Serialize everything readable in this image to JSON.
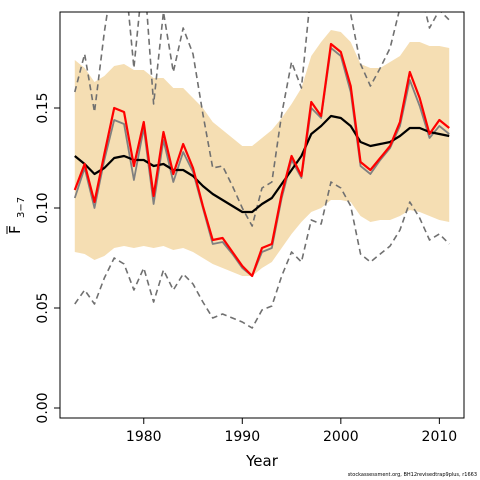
{
  "chart_data": {
    "type": "line",
    "xlabel": "Year",
    "ylabel_main": "F",
    "ylabel_sub": "3−7",
    "xlim": [
      1971.5,
      2012.5
    ],
    "ylim": [
      -0.005,
      0.198
    ],
    "x_ticks": [
      1980,
      1990,
      2000,
      2010
    ],
    "y_ticks": [
      0.0,
      0.05,
      0.1,
      0.15
    ],
    "y_tick_labels": [
      "0.00",
      "0.05",
      "0.10",
      "0.15"
    ],
    "grid": false,
    "years": [
      1973,
      1974,
      1975,
      1976,
      1977,
      1978,
      1979,
      1980,
      1981,
      1982,
      1983,
      1984,
      1985,
      1986,
      1987,
      1988,
      1989,
      1990,
      1991,
      1992,
      1993,
      1994,
      1995,
      1996,
      1997,
      1998,
      1999,
      2000,
      2001,
      2002,
      2003,
      2004,
      2005,
      2006,
      2007,
      2008,
      2009,
      2010,
      2011
    ],
    "series": [
      {
        "role": "ci_upper",
        "values": [
          0.174,
          0.17,
          0.163,
          0.166,
          0.171,
          0.172,
          0.169,
          0.169,
          0.165,
          0.165,
          0.16,
          0.16,
          0.155,
          0.15,
          0.143,
          0.139,
          0.135,
          0.131,
          0.131,
          0.135,
          0.139,
          0.145,
          0.152,
          0.16,
          0.176,
          0.183,
          0.189,
          0.188,
          0.183,
          0.172,
          0.17,
          0.17,
          0.173,
          0.176,
          0.183,
          0.183,
          0.181,
          0.181,
          0.18
        ]
      },
      {
        "role": "ci_lower",
        "values": [
          0.078,
          0.077,
          0.074,
          0.076,
          0.08,
          0.081,
          0.08,
          0.081,
          0.08,
          0.081,
          0.079,
          0.08,
          0.078,
          0.075,
          0.072,
          0.07,
          0.068,
          0.066,
          0.066,
          0.07,
          0.073,
          0.08,
          0.087,
          0.093,
          0.098,
          0.1,
          0.104,
          0.104,
          0.103,
          0.096,
          0.093,
          0.094,
          0.094,
          0.096,
          0.099,
          0.098,
          0.096,
          0.094,
          0.093
        ]
      },
      {
        "role": "dashed_upper",
        "values": [
          0.158,
          0.177,
          0.148,
          0.188,
          0.22,
          0.222,
          0.17,
          0.22,
          0.152,
          0.198,
          0.168,
          0.19,
          0.177,
          0.147,
          0.12,
          0.121,
          0.111,
          0.1,
          0.091,
          0.11,
          0.113,
          0.147,
          0.173,
          0.16,
          0.21,
          0.225,
          0.23,
          0.21,
          0.197,
          0.172,
          0.161,
          0.17,
          0.18,
          0.2,
          0.23,
          0.21,
          0.19,
          0.199,
          0.194
        ]
      },
      {
        "role": "dashed_lower",
        "values": [
          0.052,
          0.059,
          0.052,
          0.065,
          0.075,
          0.072,
          0.059,
          0.07,
          0.053,
          0.069,
          0.059,
          0.067,
          0.062,
          0.053,
          0.045,
          0.047,
          0.045,
          0.043,
          0.04,
          0.049,
          0.051,
          0.066,
          0.078,
          0.073,
          0.094,
          0.092,
          0.113,
          0.11,
          0.101,
          0.077,
          0.073,
          0.077,
          0.081,
          0.089,
          0.103,
          0.095,
          0.084,
          0.087,
          0.082
        ]
      },
      {
        "role": "gray_line",
        "values": [
          0.105,
          0.12,
          0.1,
          0.124,
          0.144,
          0.142,
          0.114,
          0.14,
          0.102,
          0.134,
          0.113,
          0.128,
          0.118,
          0.1,
          0.082,
          0.083,
          0.077,
          0.07,
          0.066,
          0.078,
          0.08,
          0.105,
          0.124,
          0.115,
          0.15,
          0.145,
          0.18,
          0.176,
          0.158,
          0.121,
          0.117,
          0.124,
          0.13,
          0.141,
          0.164,
          0.151,
          0.135,
          0.141,
          0.137
        ]
      },
      {
        "role": "median_black",
        "values": [
          0.126,
          0.122,
          0.117,
          0.12,
          0.125,
          0.126,
          0.124,
          0.124,
          0.121,
          0.122,
          0.119,
          0.119,
          0.116,
          0.111,
          0.107,
          0.104,
          0.101,
          0.098,
          0.098,
          0.102,
          0.105,
          0.112,
          0.119,
          0.126,
          0.137,
          0.141,
          0.146,
          0.145,
          0.141,
          0.133,
          0.131,
          0.132,
          0.133,
          0.136,
          0.14,
          0.14,
          0.138,
          0.137,
          0.136
        ]
      },
      {
        "role": "estimate_red",
        "values": [
          0.109,
          0.122,
          0.103,
          0.127,
          0.15,
          0.148,
          0.121,
          0.143,
          0.106,
          0.138,
          0.117,
          0.132,
          0.12,
          0.101,
          0.084,
          0.085,
          0.078,
          0.071,
          0.066,
          0.08,
          0.082,
          0.107,
          0.126,
          0.116,
          0.153,
          0.146,
          0.182,
          0.178,
          0.161,
          0.123,
          0.119,
          0.125,
          0.131,
          0.143,
          0.168,
          0.155,
          0.137,
          0.144,
          0.14
        ]
      }
    ],
    "colors": {
      "ci_fill": "#f5deb3",
      "dashed": "#707070",
      "gray_line": "#808080",
      "median": "#000000",
      "estimate": "#ff0000"
    }
  },
  "credit_text": "stockassessment.org, BH12revisedtrap9plus, r1663"
}
